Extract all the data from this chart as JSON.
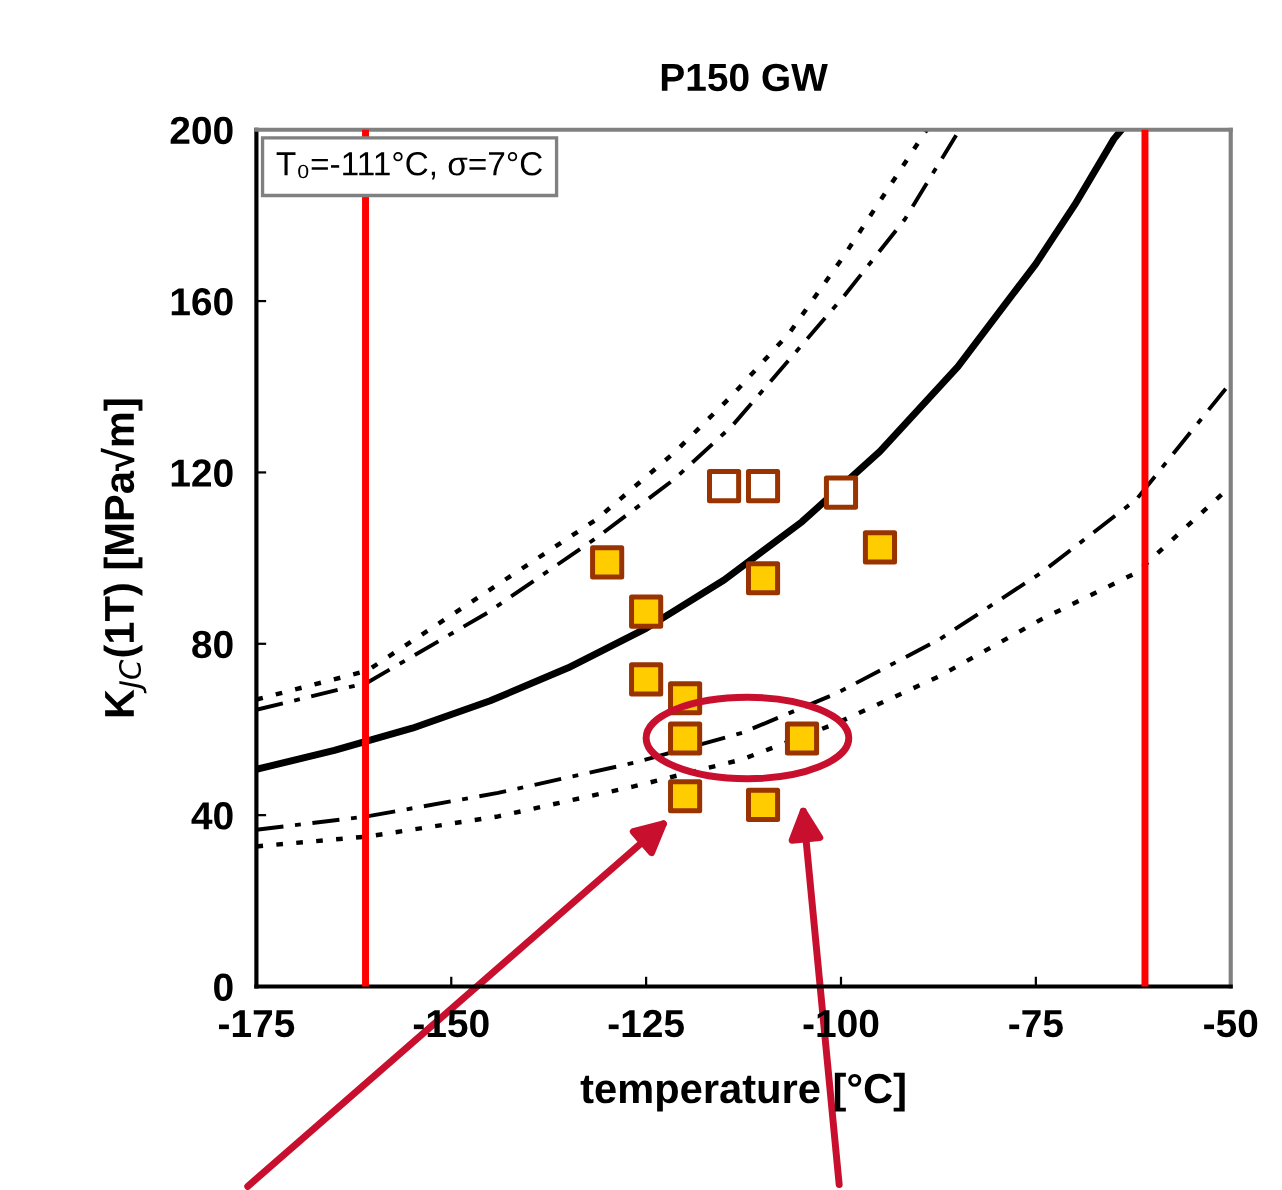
{
  "chart_data": {
    "type": "scatter",
    "title": "P150 GW",
    "xlabel": "temperature [°C]",
    "ylabel": "K$_{JC}$(1T) [MPa√m]",
    "xlim": [
      -175,
      -50
    ],
    "xticks": [
      -175,
      -150,
      -125,
      -100,
      -75,
      -50
    ],
    "ylim": [
      0,
      200
    ],
    "yticks": [
      0,
      40,
      80,
      120,
      160,
      200
    ],
    "grid": false,
    "legend": false,
    "annotations": [
      "T₀=-111°C, σ=7°C"
    ],
    "ref_lines": [
      {
        "axis": "x",
        "value": -161,
        "color": "#ff0000"
      },
      {
        "axis": "x",
        "value": -61,
        "color": "#ff0000"
      }
    ],
    "series": [
      {
        "marker": "square",
        "color": "#ffcc00",
        "x": [
          -130,
          -125,
          -110,
          -95,
          -125,
          -120,
          -120,
          -105,
          -120,
          -110
        ],
        "values": [
          99,
          87.5,
          95.3,
          102.5,
          71.7,
          67.3,
          57.9,
          57.9,
          44.4,
          42.4
        ]
      },
      {
        "marker": "square",
        "color": "#993300",
        "x": [
          -115,
          -110,
          -100
        ],
        "values": [
          116.8,
          116.8,
          115.3
        ]
      },
      {
        "type": "line",
        "marker": "none",
        "line_style": "solid",
        "color": "#000000",
        "x": [
          -175,
          -165,
          -155,
          -145,
          -135,
          -125,
          -115,
          -105,
          -95,
          -85,
          -75,
          -70,
          -65,
          -64
        ],
        "values": [
          50.7,
          55.1,
          60.3,
          66.7,
          74.4,
          83.6,
          94.9,
          108.5,
          124.9,
          144.7,
          168.7,
          182.5,
          197.8,
          200
        ]
      },
      {
        "type": "line",
        "marker": "none",
        "line_style": "dotted",
        "color": "#000000",
        "x": [
          -175,
          -160.8,
          -145.4,
          -131.4,
          -121.4,
          -114,
          -106.6,
          -99.6,
          -89
        ],
        "values": [
          67,
          73.7,
          92.2,
          109,
          124.6,
          137.9,
          152.6,
          170.6,
          200
        ]
      },
      {
        "type": "line",
        "marker": "none",
        "line_style": "dashed",
        "color": "#000000",
        "x": [
          -175,
          -160.8,
          -145.4,
          -131.4,
          -121.4,
          -114,
          -106.6,
          -99.6,
          -91.8,
          -84.8
        ],
        "values": [
          64.6,
          70.9,
          87.2,
          104.7,
          118.4,
          130.8,
          146.4,
          161.2,
          179.1,
          200
        ]
      },
      {
        "type": "line",
        "marker": "none",
        "line_style": "dashed",
        "color": "#000000",
        "x": [
          -175,
          -160.8,
          -144,
          -126.6,
          -112.7,
          -100.5,
          -87.4,
          -74.3,
          -62.1,
          -50
        ],
        "values": [
          36.6,
          39.7,
          45.2,
          52.2,
          59.2,
          68.5,
          81,
          96.6,
          113.7,
          141
        ]
      },
      {
        "type": "line",
        "marker": "none",
        "line_style": "dotted",
        "color": "#000000",
        "x": [
          -175,
          -160.8,
          -144,
          -126.6,
          -112.7,
          -100.5,
          -87.4,
          -74.3,
          -62.1,
          -50
        ],
        "values": [
          32.7,
          35,
          39.7,
          46.7,
          53,
          61.5,
          72.4,
          85.7,
          96.6,
          116.8
        ]
      }
    ]
  }
}
